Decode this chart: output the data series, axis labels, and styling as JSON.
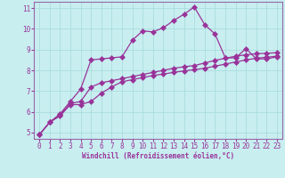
{
  "xlabel": "Windchill (Refroidissement éolien,°C)",
  "bg_color": "#c8eef0",
  "line_color": "#993399",
  "grid_color": "#aadddd",
  "spine_color": "#9966aa",
  "xlim": [
    -0.5,
    23.5
  ],
  "ylim": [
    4.7,
    11.3
  ],
  "xticks": [
    0,
    1,
    2,
    3,
    4,
    5,
    6,
    7,
    8,
    9,
    10,
    11,
    12,
    13,
    14,
    15,
    16,
    17,
    18,
    19,
    20,
    21,
    22,
    23
  ],
  "yticks": [
    5,
    6,
    7,
    8,
    9,
    10,
    11
  ],
  "series1_x": [
    0,
    1,
    2,
    3,
    4,
    5,
    6,
    7,
    8,
    9,
    10,
    11,
    12,
    13,
    14,
    15,
    16,
    17,
    18,
    19,
    20,
    21,
    22,
    23
  ],
  "series1_y": [
    4.9,
    5.5,
    5.8,
    6.35,
    6.35,
    6.5,
    6.9,
    7.2,
    7.45,
    7.55,
    7.65,
    7.75,
    7.82,
    7.9,
    7.97,
    8.03,
    8.1,
    8.2,
    8.3,
    8.4,
    8.5,
    8.58,
    8.63,
    8.68
  ],
  "series2_x": [
    0,
    1,
    2,
    3,
    4,
    5,
    6,
    7,
    8,
    9,
    10,
    11,
    12,
    13,
    14,
    15,
    16,
    17,
    18,
    19,
    20,
    21,
    22,
    23
  ],
  "series2_y": [
    4.9,
    5.5,
    5.85,
    6.4,
    6.5,
    7.2,
    7.4,
    7.5,
    7.6,
    7.7,
    7.8,
    7.9,
    8.0,
    8.1,
    8.17,
    8.23,
    8.35,
    8.48,
    8.58,
    8.68,
    8.75,
    8.8,
    8.82,
    8.85
  ],
  "series3_x": [
    0,
    1,
    2,
    3,
    4,
    5,
    6,
    7,
    8,
    9,
    10,
    11,
    12,
    13,
    14,
    15,
    16,
    17,
    18,
    19,
    20,
    21,
    22,
    23
  ],
  "series3_y": [
    4.9,
    5.5,
    5.9,
    6.5,
    7.1,
    8.5,
    8.55,
    8.6,
    8.65,
    9.45,
    9.9,
    9.85,
    10.05,
    10.4,
    10.7,
    11.05,
    10.2,
    9.75,
    8.6,
    8.6,
    9.05,
    8.55,
    8.55,
    8.65
  ],
  "marker": "+",
  "marker_size": 3,
  "line_width": 0.9,
  "tick_fontsize": 5.5,
  "xlabel_fontsize": 5.5
}
